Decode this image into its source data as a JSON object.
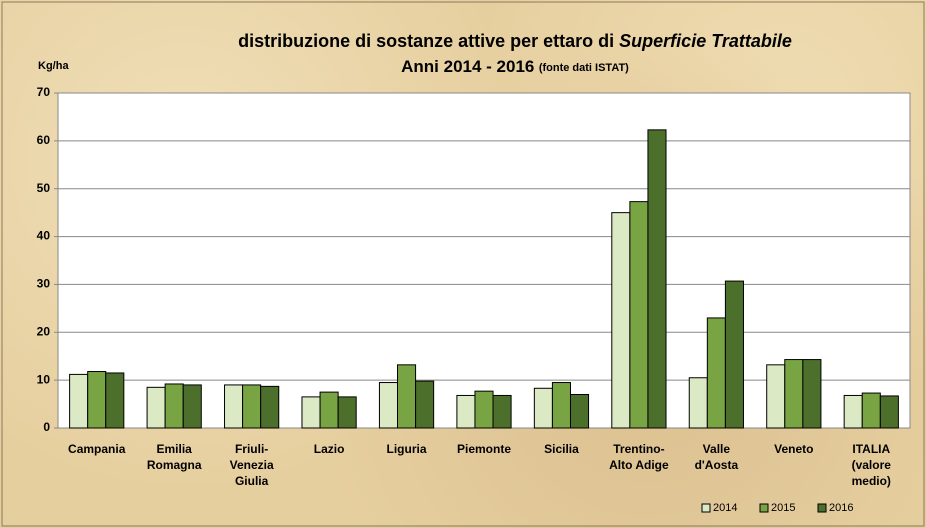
{
  "chart_data": {
    "type": "bar",
    "title": "distribuzione di sostanze attive per ettaro di",
    "title_italic": "Superficie Trattabile",
    "subtitle": "Anni 2014 - 2016",
    "subtitle_note": "(fonte dati ISTAT)",
    "y_label": "Kg/ha",
    "categories": [
      "Campania",
      "Emilia\nRomagna",
      "Friuli-\nVenezia\nGiulia",
      "Lazio",
      "Liguria",
      "Piemonte",
      "Sicilia",
      "Trentino-\nAlto Adige",
      "Valle\nd'Aosta",
      "Veneto",
      "ITALIA\n(valore\nmedio)"
    ],
    "series": [
      {
        "name": "2014",
        "color": "#dbe9c4",
        "values": [
          11.2,
          8.5,
          9.0,
          6.5,
          9.5,
          6.8,
          8.3,
          45.0,
          10.5,
          13.2,
          6.8
        ]
      },
      {
        "name": "2015",
        "color": "#79a443",
        "values": [
          11.8,
          9.2,
          9.0,
          7.5,
          13.2,
          7.7,
          9.5,
          47.3,
          23.0,
          14.3,
          7.3
        ]
      },
      {
        "name": "2016",
        "color": "#4d6f2c",
        "values": [
          11.5,
          9.0,
          8.7,
          6.5,
          9.8,
          6.8,
          7.0,
          62.3,
          30.7,
          14.3,
          6.7
        ]
      }
    ],
    "ylim": [
      0,
      70
    ],
    "yticks": [
      0,
      10,
      20,
      30,
      40,
      50,
      60,
      70
    ],
    "grid": true,
    "legend": "bottom-right"
  }
}
